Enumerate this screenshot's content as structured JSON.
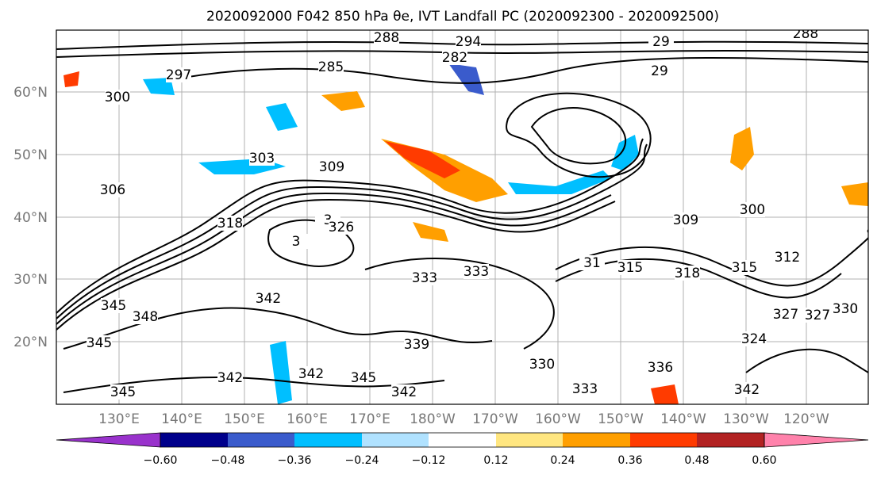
{
  "title": "2020092000 F042 850 hPa θe, IVT Landfall PC (2020092300 - 2020092500)",
  "map": {
    "lat_ticks": [
      "60°N",
      "50°N",
      "40°N",
      "30°N",
      "20°N"
    ],
    "lon_ticks": [
      "130°E",
      "140°E",
      "150°E",
      "160°E",
      "170°E",
      "180°W",
      "170°W",
      "160°W",
      "150°W",
      "140°W",
      "130°W",
      "120°W"
    ],
    "contour_labels": [
      "288",
      "294",
      "29",
      "29",
      "288",
      "285",
      "282",
      "297",
      "300",
      "303",
      "309",
      "306",
      "318",
      "3",
      "3",
      "300",
      "312",
      "315",
      "318",
      "315",
      "309",
      "31",
      "326",
      "342",
      "345",
      "348",
      "345",
      "333",
      "333",
      "339",
      "342",
      "345",
      "342",
      "345",
      "342",
      "330",
      "333",
      "324",
      "327",
      "327",
      "330",
      "336",
      "342"
    ],
    "colors": {
      "contour": "#000000",
      "fill_negative": [
        "#00bfff",
        "#3a5bcc",
        "#b0e2ff"
      ],
      "fill_positive": [
        "#ff9f00",
        "#ff3b00",
        "#ffe680"
      ]
    }
  },
  "colorbar": {
    "ticks": [
      "−0.60",
      "−0.48",
      "−0.36",
      "−0.24",
      "−0.12",
      "0.12",
      "0.24",
      "0.36",
      "0.48",
      "0.60"
    ],
    "colors": [
      "#9932cc",
      "#00008b",
      "#3a5bcc",
      "#00bfff",
      "#b0e2ff",
      "#ffffff",
      "#ffe680",
      "#ff9f00",
      "#ff3b00",
      "#b22222",
      "#ff82ab"
    ]
  }
}
